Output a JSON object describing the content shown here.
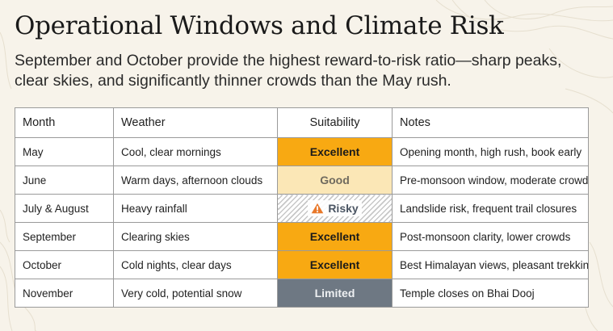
{
  "title": "Operational Windows and Climate Risk",
  "subtitle": "September and October provide the highest reward-to-risk ratio—sharp peaks, clear skies, and significantly thinner crowds than the May rush.",
  "table": {
    "headers": [
      "Month",
      "Weather",
      "Suitability",
      "Notes"
    ],
    "rows": [
      {
        "month": "May",
        "weather": "Cool, clear mornings",
        "suitability": "Excellent",
        "level": "excellent",
        "notes": "Opening month, high rush, book early"
      },
      {
        "month": "June",
        "weather": "Warm days, afternoon clouds",
        "suitability": "Good",
        "level": "good",
        "notes": "Pre-monsoon window, moderate crowd"
      },
      {
        "month": "July & August",
        "weather": "Heavy rainfall",
        "suitability": "Risky",
        "level": "risky",
        "icon": "warning-icon",
        "notes": "Landslide risk, frequent trail closures"
      },
      {
        "month": "September",
        "weather": "Clearing skies",
        "suitability": "Excellent",
        "level": "excellent",
        "notes": "Post-monsoon clarity, lower crowds"
      },
      {
        "month": "October",
        "weather": "Cold nights, clear days",
        "suitability": "Excellent",
        "level": "excellent",
        "notes": "Best Himalayan views, pleasant trekking"
      },
      {
        "month": "November",
        "weather": "Very cold, potential snow",
        "suitability": "Limited",
        "level": "limited",
        "notes": "Temple closes on Bhai Dooj"
      }
    ]
  },
  "colors": {
    "background": "#f7f3ea",
    "excellent": "#f8a912",
    "good": "#fbe7b6",
    "limited": "#6e7883",
    "warning": "#e8782a"
  }
}
